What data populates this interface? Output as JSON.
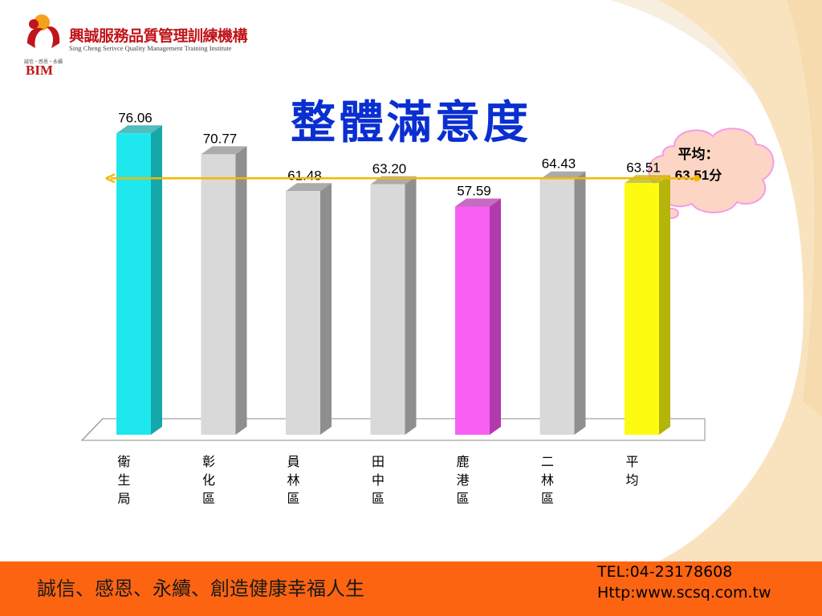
{
  "logo": {
    "name_cn": "興誠服務品質管理訓練機構",
    "name_en": "Sing Cheng Serivce Quality Management Training Institute",
    "tagline": "誠信‧感恩‧永續",
    "abbr": "BIM"
  },
  "title": "整體滿意度",
  "callout": {
    "label": "平均：",
    "value": "63.51",
    "unit": "分"
  },
  "footer": {
    "slogan": "誠信、感恩、永續、創造健康幸福人生",
    "tel": "TEL:04-23178608",
    "url": "Http:www.scsq.com.tw"
  },
  "chart_data": {
    "type": "bar",
    "categories": [
      "衛生局",
      "彰化區",
      "員林區",
      "田中區",
      "鹿港區",
      "二林區",
      "平均"
    ],
    "values": [
      76.06,
      70.77,
      61.48,
      63.2,
      57.59,
      64.43,
      63.51
    ],
    "value_labels": [
      "76.06",
      "70.77",
      "61.48",
      "63.20",
      "57.59",
      "64.43",
      "63.51"
    ],
    "colors": [
      "#1ee8ee",
      "#d9d9d9",
      "#d9d9d9",
      "#d9d9d9",
      "#f760f2",
      "#d9d9d9",
      "#fdfc10"
    ],
    "side_colors": [
      "#16a7aa",
      "#8f8f8f",
      "#8f8f8f",
      "#8f8f8f",
      "#b13aad",
      "#8f8f8f",
      "#b5b40a"
    ],
    "reference_line": {
      "value": 63.51,
      "color": "#f5b800"
    },
    "ylim": [
      0,
      100
    ],
    "grid": false,
    "legend": "none"
  }
}
